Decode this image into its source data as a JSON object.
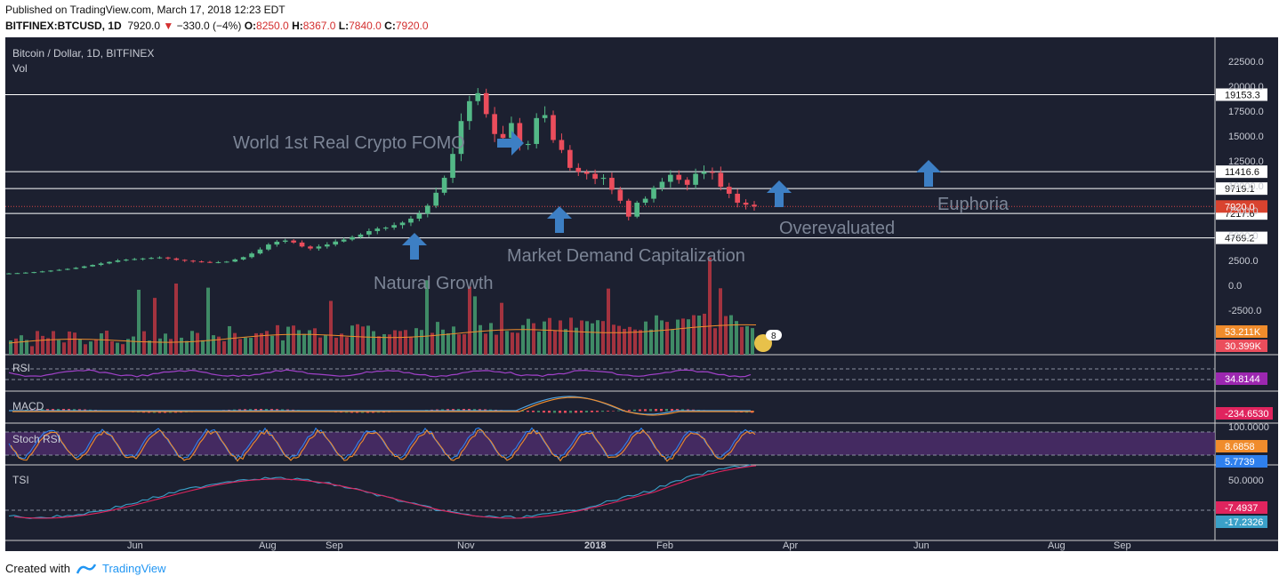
{
  "header": {
    "published": "Published on TradingView.com, March 17, 2018 12:23 EDT",
    "symbol": "BITFINEX:BTCUSD, 1D",
    "last": "7920.0",
    "change": "−330.0 (−4%)",
    "o_label": "O:",
    "o": "8250.0",
    "h_label": "H:",
    "h": "8367.0",
    "l_label": "L:",
    "l": "7840.0",
    "c_label": "C:",
    "c": "7920.0"
  },
  "footer": {
    "created_with": "Created with",
    "brand": "TradingView"
  },
  "colors": {
    "background": "#1c2030",
    "up": "#53b987",
    "down": "#eb4d5c",
    "grid_line": "#ffffff",
    "rsi": "#a041c8",
    "macd": "#4fa3e0",
    "signal": "#f08c2c",
    "stoch_k": "#2f80ed",
    "stoch_d": "#f08c2c",
    "tsi": "#3aa0c8",
    "tsi_signal": "#e0245e"
  },
  "chart_data": [
    {
      "type": "candlestick",
      "title": "Bitcoin / Dollar, 1D, BITFINEX",
      "x_ticks": [
        "Jun",
        "Aug",
        "Sep",
        "Nov",
        "2018",
        "Feb",
        "Apr",
        "Jun",
        "Aug",
        "Sep"
      ],
      "y_ticks": [
        "22500.0",
        "20000.0",
        "17500.0",
        "15000.0",
        "12500.0",
        "10000.0",
        "7500.0",
        "5000.0",
        "2500.0",
        "0.0",
        "-2500.0"
      ],
      "ylim": [
        -4500,
        23500
      ],
      "close_series": [
        1200,
        1230,
        1280,
        1330,
        1400,
        1480,
        1560,
        1650,
        1760,
        1900,
        2050,
        2200,
        2350,
        2500,
        2580,
        2640,
        2700,
        2750,
        2800,
        2700,
        2560,
        2480,
        2400,
        2350,
        2320,
        2330,
        2380,
        2600,
        2830,
        3200,
        3600,
        4100,
        4380,
        4500,
        4300,
        3900,
        3700,
        3900,
        4100,
        4400,
        4600,
        4850,
        5100,
        5450,
        5700,
        5800,
        6050,
        6300,
        6700,
        7200,
        8000,
        9300,
        10800,
        13200,
        16500,
        18500,
        19300,
        17200,
        15200,
        14800,
        16300,
        14100,
        14200,
        16800,
        17100,
        14600,
        13600,
        11800,
        11400,
        11200,
        10700,
        10800,
        9600,
        8500,
        6900,
        8300,
        8700,
        9800,
        10400,
        11100,
        10600,
        10100,
        11200,
        11400,
        11300,
        9900,
        9200,
        8300,
        8100,
        7920
      ],
      "levels": [
        {
          "value": 19153.3,
          "label": "19153.3"
        },
        {
          "value": 11416.6,
          "label": "11416.6"
        },
        {
          "value": 9719.1,
          "label": "9719.1"
        },
        {
          "value": 7217.6,
          "label": "7217.6"
        },
        {
          "value": 4769.2,
          "label": "4769.2"
        }
      ],
      "last_price": {
        "value": 7920.0,
        "label": "7920.0"
      },
      "volume": {
        "label": "Vol",
        "ma_value": "53.211K",
        "value": "30.399K",
        "badge": "8"
      },
      "annotations": [
        {
          "text": "World 1st Real Crypto FOMO",
          "arrow": "right"
        },
        {
          "text": "Market Demand Capitalization",
          "arrow": "up"
        },
        {
          "text": "Natural Growth",
          "arrow": "up"
        },
        {
          "text": "Overevaluated",
          "arrow": "up"
        },
        {
          "text": "Euphoria",
          "arrow": "up"
        }
      ]
    },
    {
      "type": "line",
      "title": "RSI",
      "value": "34.8144"
    },
    {
      "type": "line",
      "title": "MACD",
      "value": "-234.6530"
    },
    {
      "type": "line",
      "title": "Stoch RSI",
      "y_ticks": [
        "100.0000"
      ],
      "values": [
        "8.6858",
        "5.7739"
      ]
    },
    {
      "type": "line",
      "title": "TSI",
      "y_ticks": [
        "50.0000"
      ],
      "values": [
        "-7.4937",
        "-17.2326"
      ]
    }
  ]
}
